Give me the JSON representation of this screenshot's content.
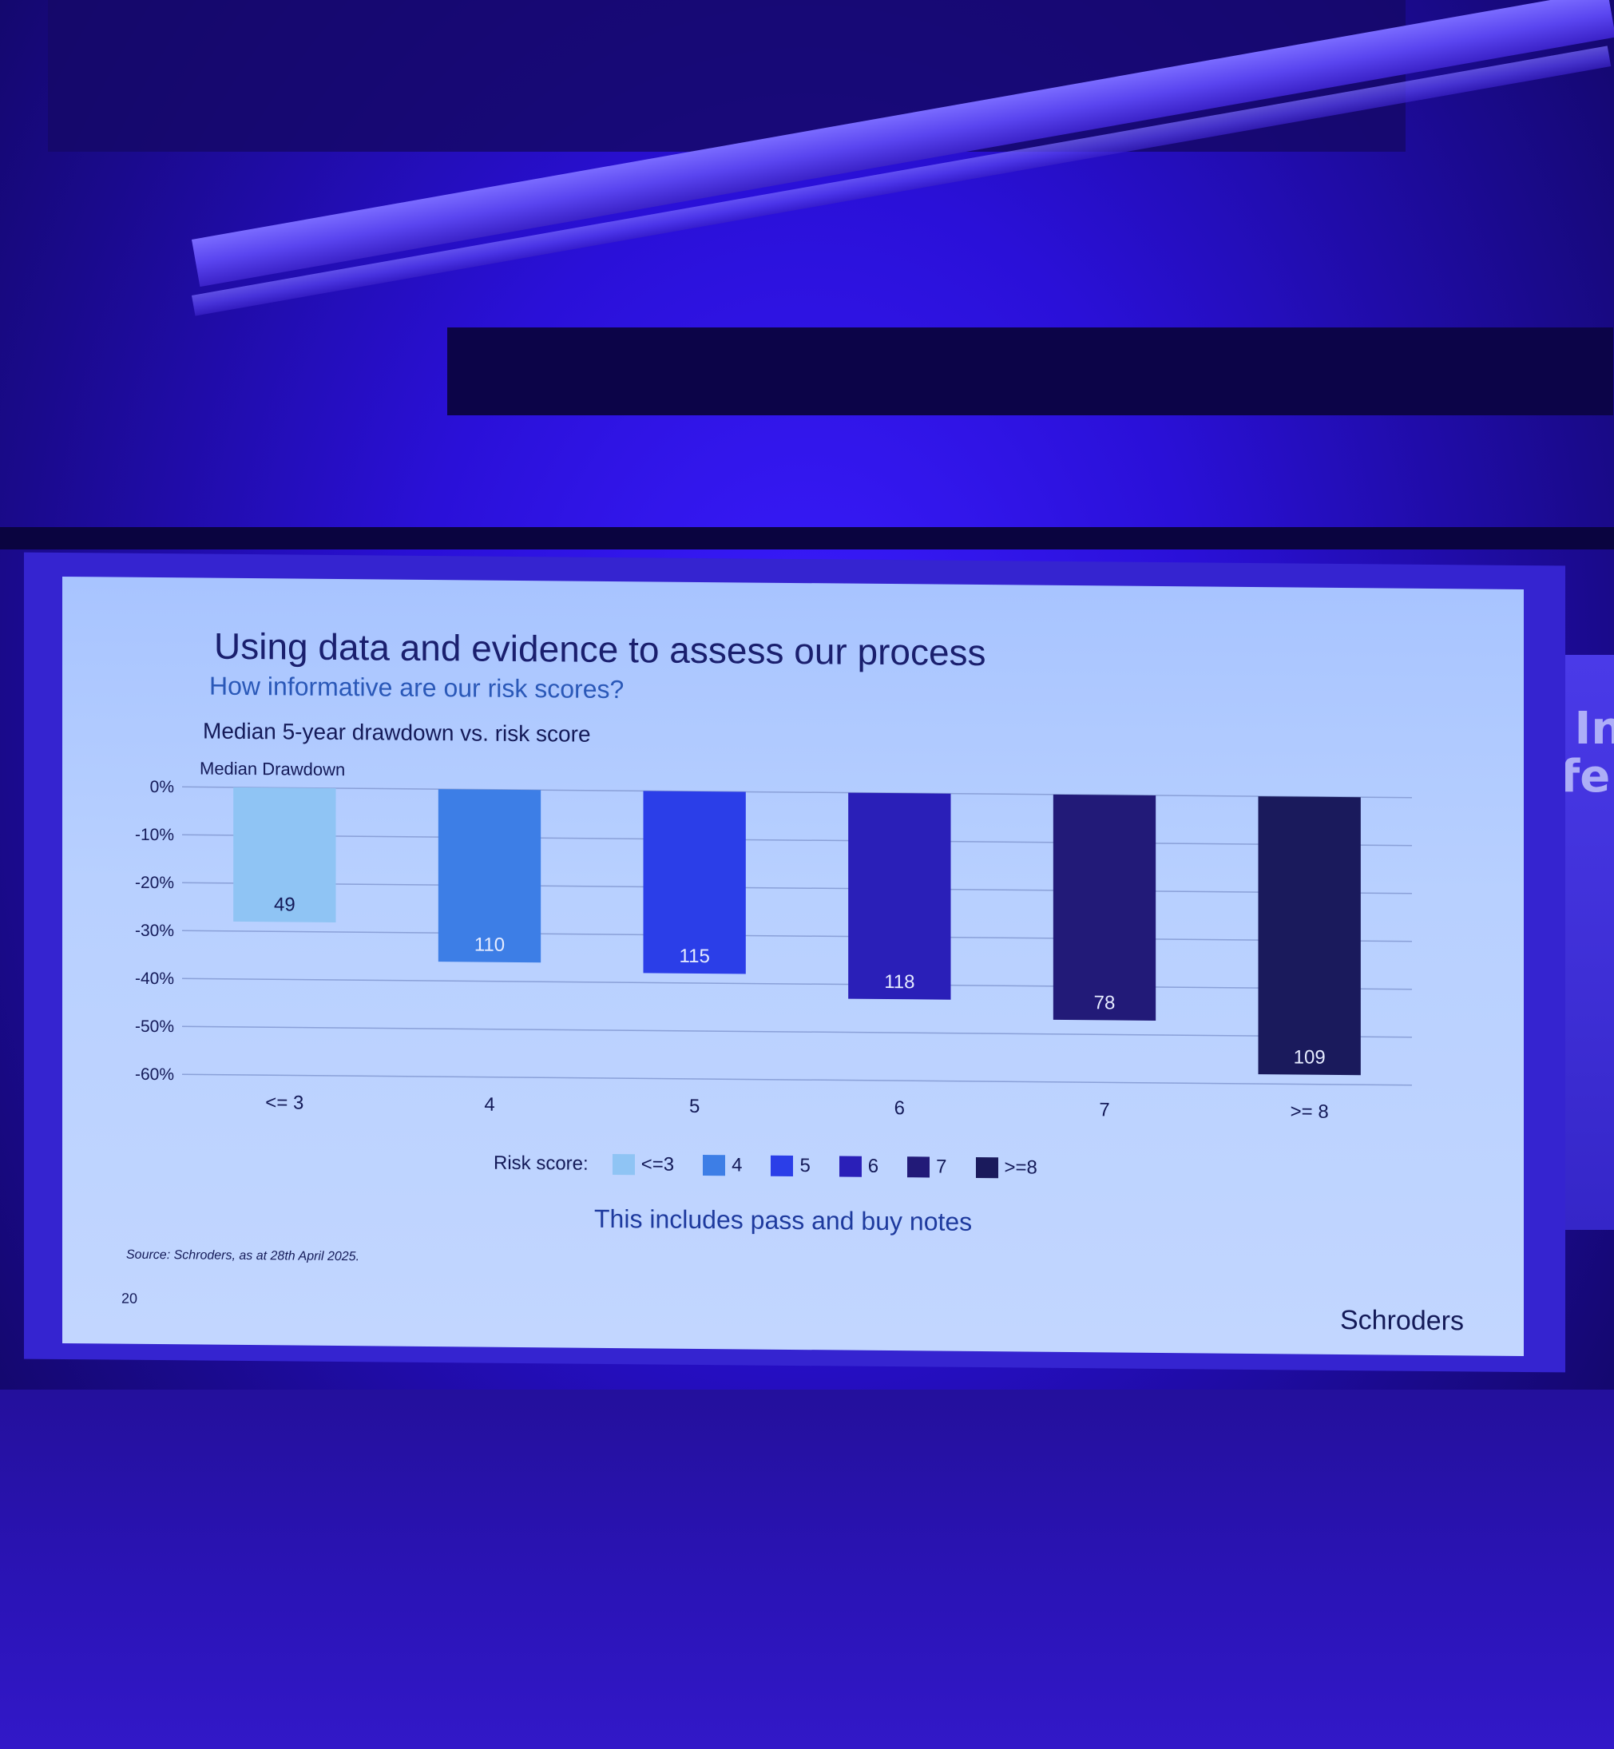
{
  "slide": {
    "title": "Using data and evidence to assess our process",
    "subtitle": "How informative are our risk scores?",
    "chart_title": "Median 5-year drawdown vs. risk score",
    "ylabel": "Median Drawdown",
    "legend_label": "Risk score:",
    "note": "This includes pass and buy notes",
    "source": "Source: Schroders, as at 28th April 2025.",
    "page_number": "20",
    "logo": "Schroders"
  },
  "background_fragments": [
    "e In",
    "nfe"
  ],
  "chart_data": {
    "type": "bar",
    "title": "Median 5-year drawdown vs. risk score",
    "ylabel": "Median Drawdown",
    "xlabel": "",
    "categories": [
      "<= 3",
      "4",
      "5",
      "6",
      "7",
      ">= 8"
    ],
    "values": [
      -28,
      -36,
      -38,
      -43,
      -47,
      -58
    ],
    "data_labels": [
      "49",
      "110",
      "115",
      "118",
      "78",
      "109"
    ],
    "legend_labels": [
      "<=3",
      "4",
      "5",
      "6",
      "7",
      ">=8"
    ],
    "colors": [
      "#8fc4f4",
      "#3d7ee6",
      "#2b3ee8",
      "#2a1fb8",
      "#221a78",
      "#1a1a5c"
    ],
    "ylim": [
      -60,
      0
    ],
    "yticks": [
      0,
      -10,
      -20,
      -30,
      -40,
      -50,
      -60
    ],
    "ytick_labels": [
      "0%",
      "-10%",
      "-20%",
      "-30%",
      "-40%",
      "-50%",
      "-60%"
    ],
    "grid": true,
    "legend_position": "bottom"
  }
}
